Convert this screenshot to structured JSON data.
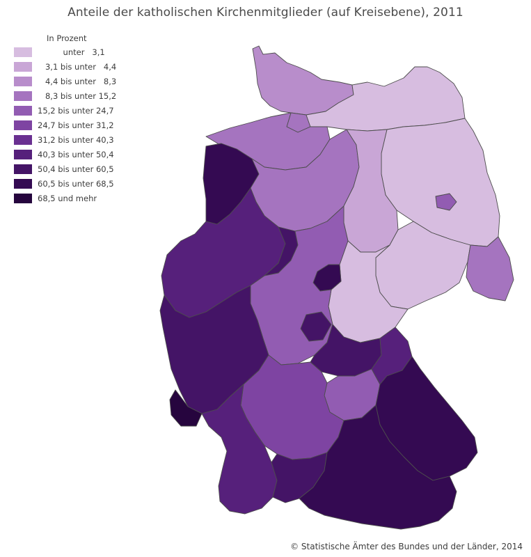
{
  "title": "Anteile der katholischen Kirchenmitglieder (auf Kreisebene), 2011",
  "legend": {
    "heading": "In Prozent",
    "classes": [
      {
        "label": "          unter   3,1",
        "color": "#d7bde0"
      },
      {
        "label": "   3,1 bis unter   4,4",
        "color": "#c9a6d6"
      },
      {
        "label": "   4,4 bis unter   8,3",
        "color": "#b88dcb"
      },
      {
        "label": "   8,3 bis unter 15,2",
        "color": "#a574bf"
      },
      {
        "label": "15,2 bis unter 24,7",
        "color": "#925cb2"
      },
      {
        "label": "24,7 bis unter 31,2",
        "color": "#7e44a2"
      },
      {
        "label": "31,2 bis unter 40,3",
        "color": "#6a3091"
      },
      {
        "label": "40,3 bis unter 50,4",
        "color": "#56207b"
      },
      {
        "label": "50,4 bis unter 60,5",
        "color": "#441466"
      },
      {
        "label": "60,5 bis unter 68,5",
        "color": "#340a52"
      },
      {
        "label": "68,5 und mehr",
        "color": "#26053e"
      }
    ]
  },
  "map": {
    "regions": [
      {
        "name": "Schleswig-Holstein",
        "class_index": 2
      },
      {
        "name": "Hamburg",
        "class_index": 3
      },
      {
        "name": "Mecklenburg-Vorpommern",
        "class_index": 0
      },
      {
        "name": "Niedersachsen Nord",
        "class_index": 3
      },
      {
        "name": "Emsland / Oldenburger Münsterland",
        "class_index": 9
      },
      {
        "name": "Niedersachsen Mitte",
        "class_index": 3
      },
      {
        "name": "Berlin",
        "class_index": 4
      },
      {
        "name": "Brandenburg",
        "class_index": 0
      },
      {
        "name": "Sachsen-Anhalt",
        "class_index": 1
      },
      {
        "name": "Sachsen",
        "class_index": 0
      },
      {
        "name": "Görlitz",
        "class_index": 3
      },
      {
        "name": "Thüringen",
        "class_index": 0
      },
      {
        "name": "Eichsfeld",
        "class_index": 9
      },
      {
        "name": "Nordrhein-Westfalen",
        "class_index": 7
      },
      {
        "name": "Paderborn / Hochsauerland",
        "class_index": 8
      },
      {
        "name": "Hessen",
        "class_index": 4
      },
      {
        "name": "Fulda",
        "class_index": 8
      },
      {
        "name": "Rheinland-Pfalz",
        "class_index": 8
      },
      {
        "name": "Saarland",
        "class_index": 10
      },
      {
        "name": "Unterfranken",
        "class_index": 8
      },
      {
        "name": "Mittelfranken",
        "class_index": 4
      },
      {
        "name": "Oberfranken",
        "class_index": 7
      },
      {
        "name": "Oberpfalz / Niederbayern",
        "class_index": 9
      },
      {
        "name": "Baden-Württemberg Nord",
        "class_index": 5
      },
      {
        "name": "Baden (Süd)",
        "class_index": 7
      },
      {
        "name": "Oberschwaben",
        "class_index": 8
      },
      {
        "name": "Oberbayern / Schwaben",
        "class_index": 9
      }
    ]
  },
  "source": "© Statistische Ämter des Bundes und der Länder, 2014"
}
